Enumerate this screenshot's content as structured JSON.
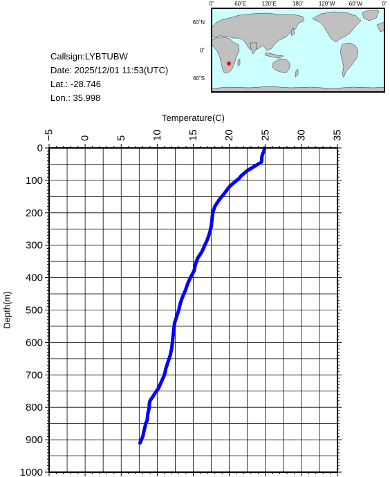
{
  "station": {
    "callsign_line": "Callsign:LYBTUBW",
    "date_line": "Date:  2025/12/01 11:53(UTC)",
    "lat_line": "Lat.:  -28.746",
    "lon_line": "Lon.:   35.998",
    "lat": -28.746,
    "lon": 35.998
  },
  "map": {
    "lon_labels": [
      "0˚",
      "60˚E",
      "120˚E",
      "180˚",
      "120˚W",
      "60˚W",
      "0˚"
    ],
    "lat_labels": [
      "60˚N",
      "0˚",
      "60˚S"
    ],
    "ocean_color": "#ccffff",
    "land_color": "#c0c0c0",
    "marker_color": "#ff0000"
  },
  "chart_data": {
    "type": "line",
    "title": "",
    "xlabel": "Temperature(C)",
    "ylabel": "Depth(m)",
    "xlim": [
      -5,
      35
    ],
    "ylim": [
      0,
      1000
    ],
    "y_inverted": true,
    "x_axis_position": "top",
    "x_ticks": [
      -5,
      0,
      5,
      10,
      15,
      20,
      25,
      30,
      35
    ],
    "y_ticks": [
      0,
      100,
      200,
      300,
      400,
      500,
      600,
      700,
      800,
      900,
      1000
    ],
    "x_tick_labels": [
      "−5",
      "0",
      "5",
      "10",
      "15",
      "20",
      "25",
      "30",
      "35"
    ],
    "y_tick_labels": [
      "0",
      "100",
      "200",
      "300",
      "400",
      "500",
      "600",
      "700",
      "800",
      "900",
      "1000"
    ],
    "grid": true,
    "series": [
      {
        "color": "#0000ff",
        "x": [
          24.9,
          24.8,
          24.6,
          24.5,
          24.5,
          24.4,
          24.0,
          22.5,
          21.7,
          21.3,
          20.5,
          20.0,
          19.5,
          18.6,
          18.0,
          17.7,
          17.6,
          17.5,
          17.3,
          17.0,
          16.6,
          16.2,
          15.6,
          15.3,
          15.1,
          14.6,
          14.2,
          13.9,
          13.5,
          13.2,
          13.0,
          12.7,
          12.4,
          12.3,
          12.2,
          12.1,
          12.0,
          11.8,
          11.5,
          11.2,
          11.0,
          10.6,
          10.2,
          9.9,
          9.6,
          9.3,
          9.0,
          8.9,
          8.9,
          8.7,
          8.6,
          8.4,
          8.2,
          8.0,
          7.6
        ],
        "y": [
          0,
          10,
          20,
          30,
          40,
          45,
          50,
          70,
          85,
          95,
          110,
          120,
          135,
          160,
          180,
          200,
          220,
          240,
          260,
          280,
          300,
          320,
          340,
          360,
          380,
          400,
          420,
          440,
          460,
          480,
          500,
          520,
          540,
          560,
          580,
          600,
          620,
          640,
          660,
          680,
          700,
          720,
          740,
          750,
          760,
          770,
          780,
          790,
          800,
          820,
          840,
          850,
          870,
          890,
          910
        ]
      }
    ]
  }
}
